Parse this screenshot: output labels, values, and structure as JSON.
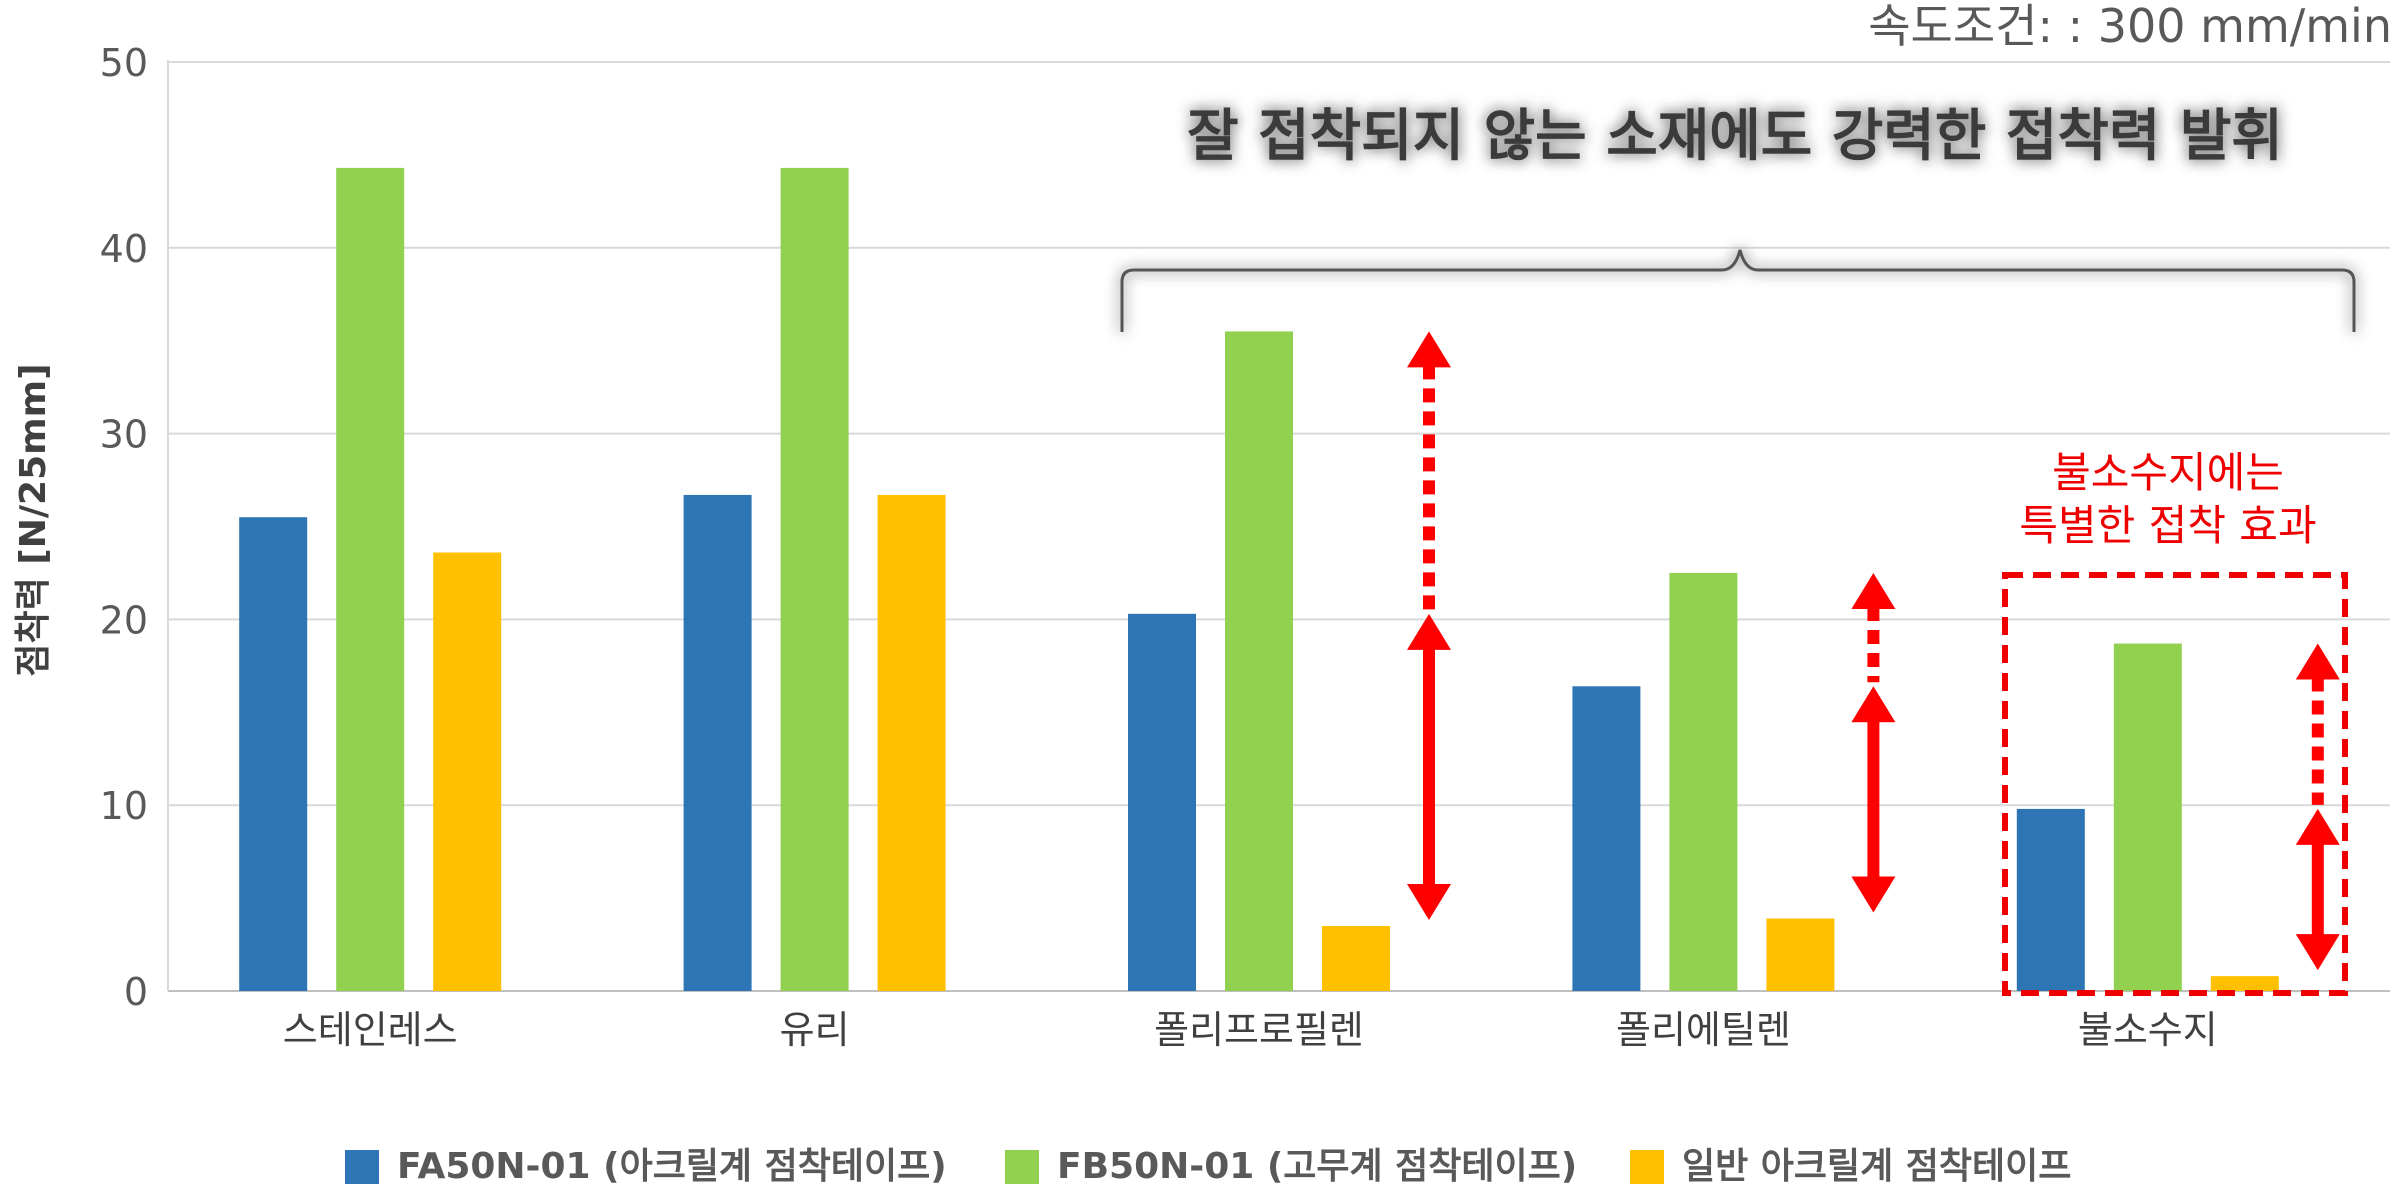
{
  "chart_data": {
    "type": "bar",
    "title": "",
    "condition": "속도조건: : 300 mm/min",
    "ylabel": "점착력 [N/25mm]",
    "xlabel": "",
    "ylim": [
      0,
      50
    ],
    "yticks": [
      0,
      10,
      20,
      30,
      40,
      50
    ],
    "grid": true,
    "legend_position": "bottom",
    "categories": [
      "스테인레스",
      "유리",
      "폴리프로필렌",
      "폴리에틸렌",
      "불소수지"
    ],
    "series": [
      {
        "name": "FA50N-01 (아크릴계 점착테이프)",
        "color": "#2e75b6",
        "values": [
          25.5,
          26.7,
          20.3,
          16.4,
          9.8
        ]
      },
      {
        "name": "FB50N-01 (고무계 점착테이프)",
        "color": "#92d050",
        "values": [
          44.3,
          44.3,
          35.5,
          22.5,
          18.7
        ]
      },
      {
        "name": "일반 아크릴계 점착테이프",
        "color": "#ffc000",
        "values": [
          23.6,
          26.7,
          3.5,
          3.9,
          0.8
        ]
      }
    ],
    "annotations": {
      "headline": "잘 접착되지 않는 소재에도 강력한 접착력 발휘",
      "note_line1": "불소수지에는",
      "note_line2": "특별한 접착 효과",
      "arrow_color": "#ff0000"
    }
  }
}
